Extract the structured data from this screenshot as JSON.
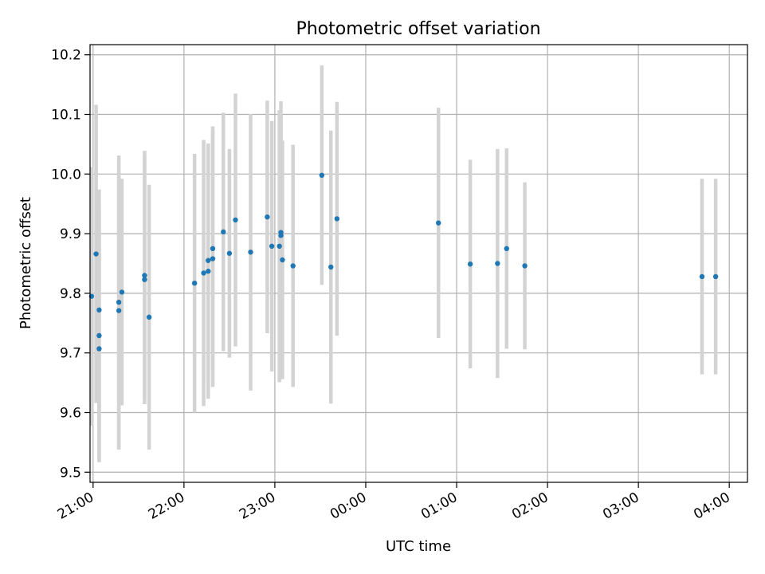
{
  "chart_data": {
    "type": "scatter",
    "title": "Photometric offset variation",
    "xlabel": "UTC time",
    "ylabel": "Photometric offset",
    "x_tick_labels": [
      "21:00",
      "22:00",
      "23:00",
      "00:00",
      "01:00",
      "02:00",
      "03:00",
      "04:00"
    ],
    "y_tick_labels": [
      "9.5",
      "9.6",
      "9.7",
      "9.8",
      "9.9",
      "10.0",
      "10.1",
      "10.2"
    ],
    "xlim": [
      "20:58",
      "04:12"
    ],
    "ylim": [
      9.483,
      10.217
    ],
    "grid": true,
    "errorbar_color": "#d3d3d3",
    "point_color": "#1f77b4",
    "points": [
      {
        "t": "20:59",
        "y": 9.795,
        "err": 0.217
      },
      {
        "t": "21:02",
        "y": 9.866,
        "err": 0.25
      },
      {
        "t": "21:04",
        "y": 9.772,
        "err": 0.202
      },
      {
        "t": "21:04",
        "y": 9.729,
        "err": 0.212
      },
      {
        "t": "21:04",
        "y": 9.707,
        "err": 0.19
      },
      {
        "t": "21:17",
        "y": 9.785,
        "err": 0.246
      },
      {
        "t": "21:17",
        "y": 9.771,
        "err": 0.233
      },
      {
        "t": "21:19",
        "y": 9.802,
        "err": 0.19
      },
      {
        "t": "21:34",
        "y": 9.83,
        "err": 0.209
      },
      {
        "t": "21:34",
        "y": 9.823,
        "err": 0.209
      },
      {
        "t": "21:37",
        "y": 9.76,
        "err": 0.222
      },
      {
        "t": "22:07",
        "y": 9.817,
        "err": 0.217
      },
      {
        "t": "22:13",
        "y": 9.834,
        "err": 0.223
      },
      {
        "t": "22:16",
        "y": 9.855,
        "err": 0.196
      },
      {
        "t": "22:16",
        "y": 9.837,
        "err": 0.214
      },
      {
        "t": "22:19",
        "y": 9.875,
        "err": 0.205
      },
      {
        "t": "22:19",
        "y": 9.858,
        "err": 0.215
      },
      {
        "t": "22:26",
        "y": 9.903,
        "err": 0.2
      },
      {
        "t": "22:30",
        "y": 9.867,
        "err": 0.175
      },
      {
        "t": "22:34",
        "y": 9.923,
        "err": 0.212
      },
      {
        "t": "22:44",
        "y": 9.869,
        "err": 0.232
      },
      {
        "t": "22:55",
        "y": 9.928,
        "err": 0.195
      },
      {
        "t": "22:58",
        "y": 9.879,
        "err": 0.21
      },
      {
        "t": "23:03",
        "y": 9.879,
        "err": 0.228
      },
      {
        "t": "23:04",
        "y": 9.902,
        "err": 0.22
      },
      {
        "t": "23:04",
        "y": 9.897,
        "err": 0.205
      },
      {
        "t": "23:05",
        "y": 9.856,
        "err": 0.2
      },
      {
        "t": "23:12",
        "y": 9.846,
        "err": 0.203
      },
      {
        "t": "23:31",
        "y": 9.998,
        "err": 0.184
      },
      {
        "t": "23:37",
        "y": 9.844,
        "err": 0.229
      },
      {
        "t": "23:41",
        "y": 9.925,
        "err": 0.196
      },
      {
        "t": "00:48",
        "y": 9.918,
        "err": 0.193
      },
      {
        "t": "01:09",
        "y": 9.849,
        "err": 0.175
      },
      {
        "t": "01:27",
        "y": 9.85,
        "err": 0.192
      },
      {
        "t": "01:33",
        "y": 9.875,
        "err": 0.168
      },
      {
        "t": "01:45",
        "y": 9.846,
        "err": 0.14
      },
      {
        "t": "03:42",
        "y": 9.828,
        "err": 0.164
      },
      {
        "t": "03:51",
        "y": 9.828,
        "err": 0.164
      }
    ]
  }
}
